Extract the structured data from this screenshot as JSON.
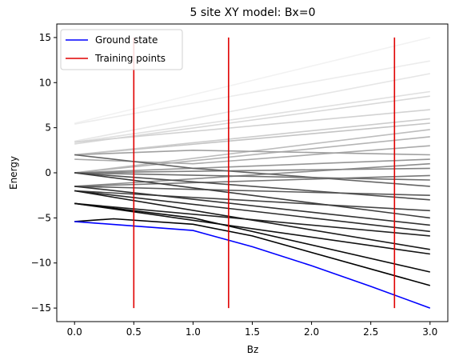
{
  "chart_data": {
    "type": "line",
    "title": "5 site XY model: Bx=0",
    "xlabel": "Bz",
    "ylabel": "Energy",
    "xlim": [
      -0.15,
      3.15
    ],
    "ylim": [
      -16.5,
      16.5
    ],
    "x_ticks": [
      "0.0",
      "0.5",
      "1.0",
      "1.5",
      "2.0",
      "2.5",
      "3.0"
    ],
    "y_ticks": [
      "-15",
      "-10",
      "-5",
      "0",
      "5",
      "10",
      "15"
    ],
    "grid": false,
    "legend": {
      "placement": "top-left",
      "entries": [
        {
          "label": "Ground state",
          "color": "#0000ff"
        },
        {
          "label": "Training points",
          "color": "#e00000"
        }
      ]
    },
    "ground_state": {
      "name": "Ground state",
      "color": "#0000ff",
      "x": [
        0,
        1.0,
        1.5,
        2.0,
        2.5,
        3.0
      ],
      "y": [
        -5.4,
        -6.4,
        -8.2,
        -10.3,
        -12.6,
        -15.0
      ]
    },
    "training_points": {
      "name": "Training points",
      "color": "#e00000",
      "x": [
        0.5,
        1.3,
        2.7
      ],
      "y_range": [
        -15,
        15
      ]
    },
    "spectrum": [
      {
        "color": "#f2f2f2",
        "x": [
          0,
          3
        ],
        "y": [
          5.5,
          15
        ]
      },
      {
        "color": "#ececec",
        "x": [
          0,
          3
        ],
        "y": [
          5.4,
          12.4
        ]
      },
      {
        "color": "#e6e6e6",
        "x": [
          0,
          3
        ],
        "y": [
          3.5,
          11
        ]
      },
      {
        "color": "#e0e0e0",
        "x": [
          0,
          3
        ],
        "y": [
          3.4,
          9
        ]
      },
      {
        "color": "#d8d8d8",
        "x": [
          0,
          3
        ],
        "y": [
          3.2,
          8.5
        ]
      },
      {
        "color": "#d2d2d2",
        "x": [
          0,
          3
        ],
        "y": [
          3.4,
          7
        ]
      },
      {
        "color": "#cccccc",
        "x": [
          0,
          3
        ],
        "y": [
          2.0,
          6
        ]
      },
      {
        "color": "#c4c4c4",
        "x": [
          0,
          3
        ],
        "y": [
          2.0,
          5.5
        ]
      },
      {
        "color": "#bdbdbd",
        "x": [
          0,
          3
        ],
        "y": [
          0.0,
          4.8
        ]
      },
      {
        "color": "#b4b4b4",
        "x": [
          0,
          3
        ],
        "y": [
          0.0,
          4
        ]
      },
      {
        "color": "#aaaaaa",
        "x": [
          0,
          1.0,
          3
        ],
        "y": [
          1.5,
          1.0,
          3.0
        ]
      },
      {
        "color": "#a0a0a0",
        "x": [
          0,
          1.0,
          3
        ],
        "y": [
          2.0,
          2.5,
          2.0
        ]
      },
      {
        "color": "#969696",
        "x": [
          0,
          3
        ],
        "y": [
          0.0,
          1.5
        ]
      },
      {
        "color": "#8c8c8c",
        "x": [
          0,
          3
        ],
        "y": [
          -1.5,
          1.0
        ]
      },
      {
        "color": "#828282",
        "x": [
          0,
          3
        ],
        "y": [
          0.0,
          0.5
        ]
      },
      {
        "color": "#787878",
        "x": [
          0,
          3
        ],
        "y": [
          -1.5,
          -0.3
        ]
      },
      {
        "color": "#6e6e6e",
        "x": [
          0,
          3
        ],
        "y": [
          0.0,
          -0.8
        ]
      },
      {
        "color": "#646464",
        "x": [
          0,
          1.0,
          3
        ],
        "y": [
          2.0,
          0.5,
          -1.5
        ]
      },
      {
        "color": "#5a5a5a",
        "x": [
          0,
          3
        ],
        "y": [
          -1.5,
          -2.5
        ]
      },
      {
        "color": "#505050",
        "x": [
          0,
          3
        ],
        "y": [
          0.0,
          -3.0
        ]
      },
      {
        "color": "#464646",
        "x": [
          0,
          3
        ],
        "y": [
          -2.0,
          -4.2
        ]
      },
      {
        "color": "#3c3c3c",
        "x": [
          0,
          3
        ],
        "y": [
          0.0,
          -5.0
        ]
      },
      {
        "color": "#323232",
        "x": [
          0,
          3
        ],
        "y": [
          -1.5,
          -5.8
        ]
      },
      {
        "color": "#2a2a2a",
        "x": [
          0,
          3
        ],
        "y": [
          -2.0,
          -6.5
        ]
      },
      {
        "color": "#222222",
        "x": [
          0,
          3
        ],
        "y": [
          -3.4,
          -7.0
        ]
      },
      {
        "color": "#1a1a1a",
        "x": [
          0,
          3
        ],
        "y": [
          -2.0,
          -8.5
        ]
      },
      {
        "color": "#121212",
        "x": [
          0,
          3
        ],
        "y": [
          -3.4,
          -9.0
        ]
      },
      {
        "color": "#0a0a0a",
        "x": [
          0,
          1.0,
          3
        ],
        "y": [
          -3.4,
          -5.0,
          -11.0
        ]
      },
      {
        "color": "#000000",
        "x": [
          0,
          0.33,
          1.0,
          1.5,
          3
        ],
        "y": [
          -5.4,
          -5.1,
          -5.7,
          -7.0,
          -12.5
        ]
      }
    ]
  }
}
